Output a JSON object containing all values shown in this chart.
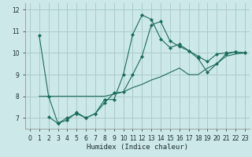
{
  "xlabel": "Humidex (Indice chaleur)",
  "bg_color": "#cce8e8",
  "grid_color": "#aacccc",
  "line_color": "#1a6b5a",
  "xlim": [
    -0.5,
    23.5
  ],
  "ylim": [
    6.5,
    12.3
  ],
  "yticks": [
    7,
    8,
    9,
    10,
    11,
    12
  ],
  "xticks": [
    0,
    1,
    2,
    3,
    4,
    5,
    6,
    7,
    8,
    9,
    10,
    11,
    12,
    13,
    14,
    15,
    16,
    17,
    18,
    19,
    20,
    21,
    22,
    23
  ],
  "line1_x": [
    1,
    2,
    3,
    4,
    5,
    6,
    7,
    8,
    9,
    10,
    11,
    12,
    13,
    14,
    15,
    16,
    17,
    18,
    19,
    20,
    21,
    22,
    23
  ],
  "line1_y": [
    10.8,
    8.0,
    6.75,
    6.9,
    7.25,
    7.0,
    7.2,
    7.85,
    7.85,
    9.0,
    10.85,
    11.75,
    11.55,
    10.65,
    10.25,
    10.4,
    10.1,
    9.85,
    9.6,
    9.95,
    10.0,
    10.05,
    10.0
  ],
  "line2_x": [
    2,
    3,
    4,
    5,
    6,
    7,
    8,
    9,
    10,
    11,
    12,
    13,
    14,
    15,
    16,
    17,
    18,
    19,
    20,
    21,
    22,
    23
  ],
  "line2_y": [
    7.05,
    6.75,
    7.0,
    7.2,
    7.0,
    7.2,
    7.7,
    8.15,
    8.2,
    9.0,
    9.85,
    11.3,
    11.45,
    10.55,
    10.3,
    10.1,
    9.75,
    9.1,
    9.5,
    9.95,
    10.05,
    10.0
  ],
  "line3_x": [
    1,
    2,
    3,
    4,
    5,
    6,
    7,
    8,
    9,
    10,
    11,
    12,
    13,
    14,
    15,
    16,
    17,
    18,
    19,
    20,
    21,
    22,
    23
  ],
  "line3_y": [
    8.0,
    8.0,
    8.0,
    8.0,
    8.0,
    8.0,
    8.0,
    8.0,
    8.1,
    8.2,
    8.4,
    8.55,
    8.75,
    8.9,
    9.1,
    9.3,
    9.0,
    9.0,
    9.3,
    9.5,
    9.85,
    9.95,
    10.0
  ]
}
